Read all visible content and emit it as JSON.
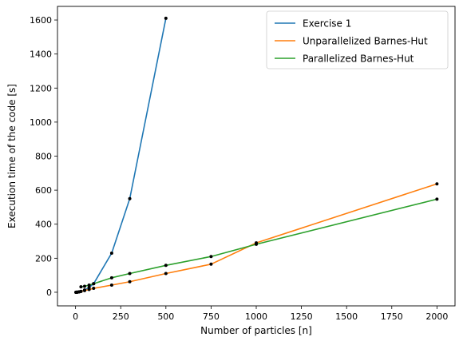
{
  "chart_data": {
    "type": "line",
    "xlabel": "Number of particles [n]",
    "ylabel": "Execution time of the code [s]",
    "xlim": [
      -100,
      2100
    ],
    "ylim": [
      -80,
      1680
    ],
    "xticks": [
      0,
      250,
      500,
      750,
      1000,
      1250,
      1500,
      1750,
      2000
    ],
    "yticks": [
      0,
      200,
      400,
      600,
      800,
      1000,
      1200,
      1400,
      1600
    ],
    "grid": false,
    "legend_position": "upper-right",
    "series": [
      {
        "name": "Exercise 1",
        "color": "#1f77b4",
        "x": [
          2,
          5,
          10,
          20,
          30,
          50,
          75,
          100,
          200,
          300,
          500
        ],
        "y": [
          0,
          0.1,
          0.3,
          2,
          5,
          13,
          28,
          50,
          230,
          550,
          1610
        ]
      },
      {
        "name": "Unparallelized Barnes-Hut",
        "color": "#ff7f0e",
        "x": [
          2,
          5,
          10,
          20,
          30,
          50,
          75,
          100,
          200,
          300,
          500,
          750,
          1000,
          2000
        ],
        "y": [
          0,
          0.5,
          1,
          3,
          5,
          10,
          16,
          23,
          42,
          62,
          110,
          165,
          290,
          637
        ]
      },
      {
        "name": "Parallelized Barnes-Hut",
        "color": "#2ca02c",
        "x": [
          30,
          50,
          75,
          100,
          200,
          300,
          500,
          750,
          1000,
          2000
        ],
        "y": [
          32,
          35,
          42,
          50,
          85,
          110,
          158,
          210,
          282,
          547
        ]
      }
    ]
  }
}
